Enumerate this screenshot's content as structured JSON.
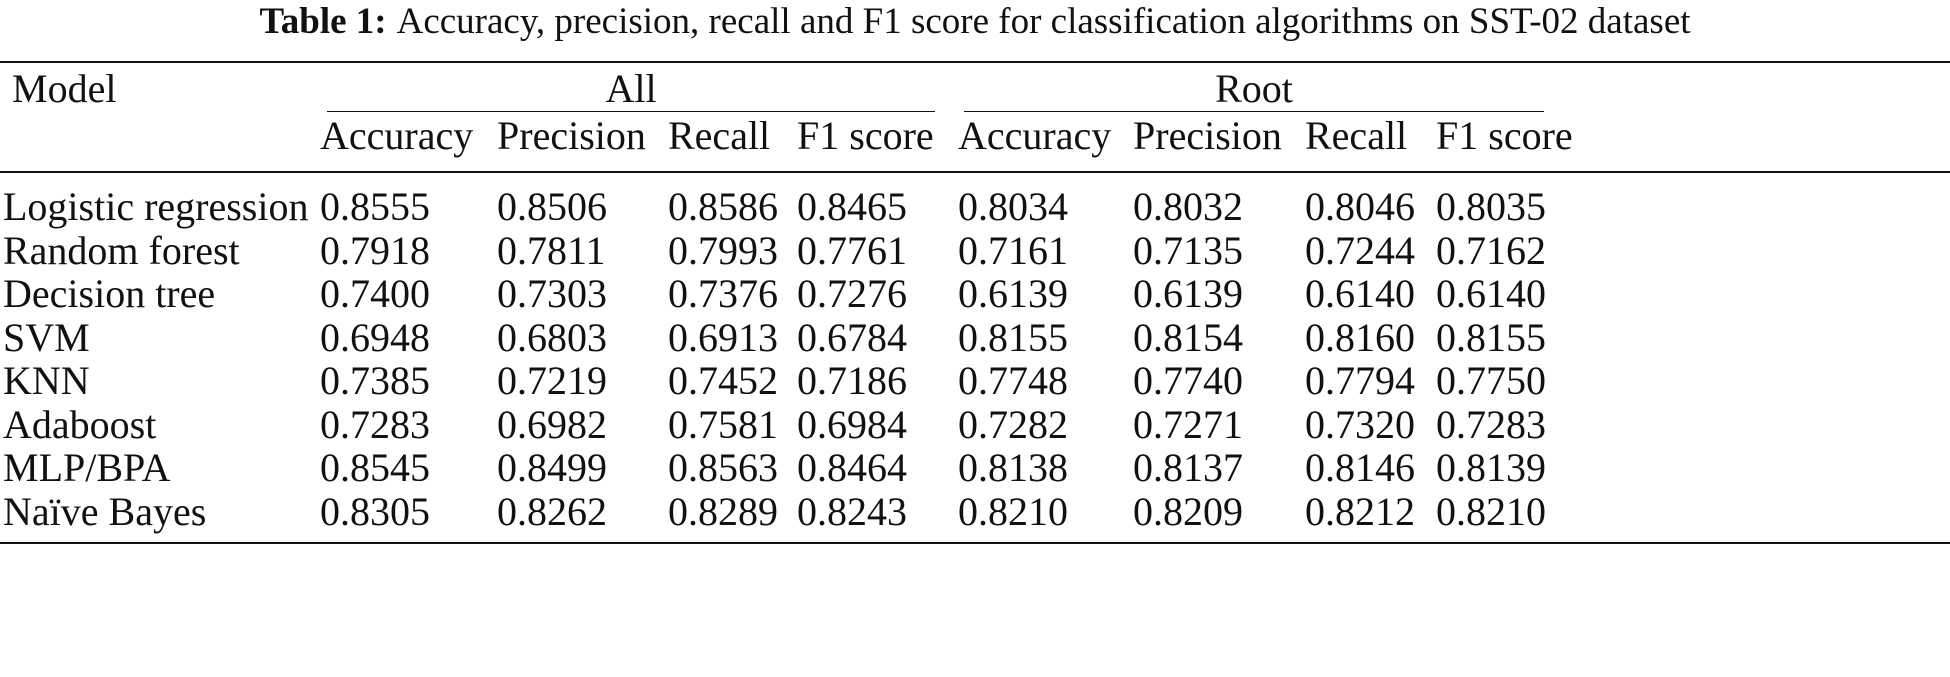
{
  "caption": {
    "label": "Table 1:",
    "text": "Accuracy, precision, recall and F1 score for classification algorithms on SST-02 dataset"
  },
  "table": {
    "model_header": "Model",
    "groups": [
      "All",
      "Root"
    ],
    "subheaders": [
      "Accuracy",
      "Precision",
      "Recall",
      "F1 score",
      "Accuracy",
      "Precision",
      "Recall",
      "F1 score"
    ],
    "rows": [
      {
        "model": "Logistic regression",
        "values": [
          "0.8555",
          "0.8506",
          "0.8586",
          "0.8465",
          "0.8034",
          "0.8032",
          "0.8046",
          "0.8035"
        ]
      },
      {
        "model": "Random forest",
        "values": [
          "0.7918",
          "0.7811",
          "0.7993",
          "0.7761",
          "0.7161",
          "0.7135",
          "0.7244",
          "0.7162"
        ]
      },
      {
        "model": "Decision tree",
        "values": [
          "0.7400",
          "0.7303",
          "0.7376",
          "0.7276",
          "0.6139",
          "0.6139",
          "0.6140",
          "0.6140"
        ]
      },
      {
        "model": "SVM",
        "values": [
          "0.6948",
          "0.6803",
          "0.6913",
          "0.6784",
          "0.8155",
          "0.8154",
          "0.8160",
          "0.8155"
        ]
      },
      {
        "model": "KNN",
        "values": [
          "0.7385",
          "0.7219",
          "0.7452",
          "0.7186",
          "0.7748",
          "0.7740",
          "0.7794",
          "0.7750"
        ]
      },
      {
        "model": "Adaboost",
        "values": [
          "0.7283",
          "0.6982",
          "0.7581",
          "0.6984",
          "0.7282",
          "0.7271",
          "0.7320",
          "0.7283"
        ]
      },
      {
        "model": "MLP/BPA",
        "values": [
          "0.8545",
          "0.8499",
          "0.8563",
          "0.8464",
          "0.8138",
          "0.8137",
          "0.8146",
          "0.8139"
        ]
      },
      {
        "model": "Naïve Bayes",
        "values": [
          "0.8305",
          "0.8262",
          "0.8289",
          "0.8243",
          "0.8210",
          "0.8209",
          "0.8212",
          "0.8210"
        ]
      }
    ]
  }
}
